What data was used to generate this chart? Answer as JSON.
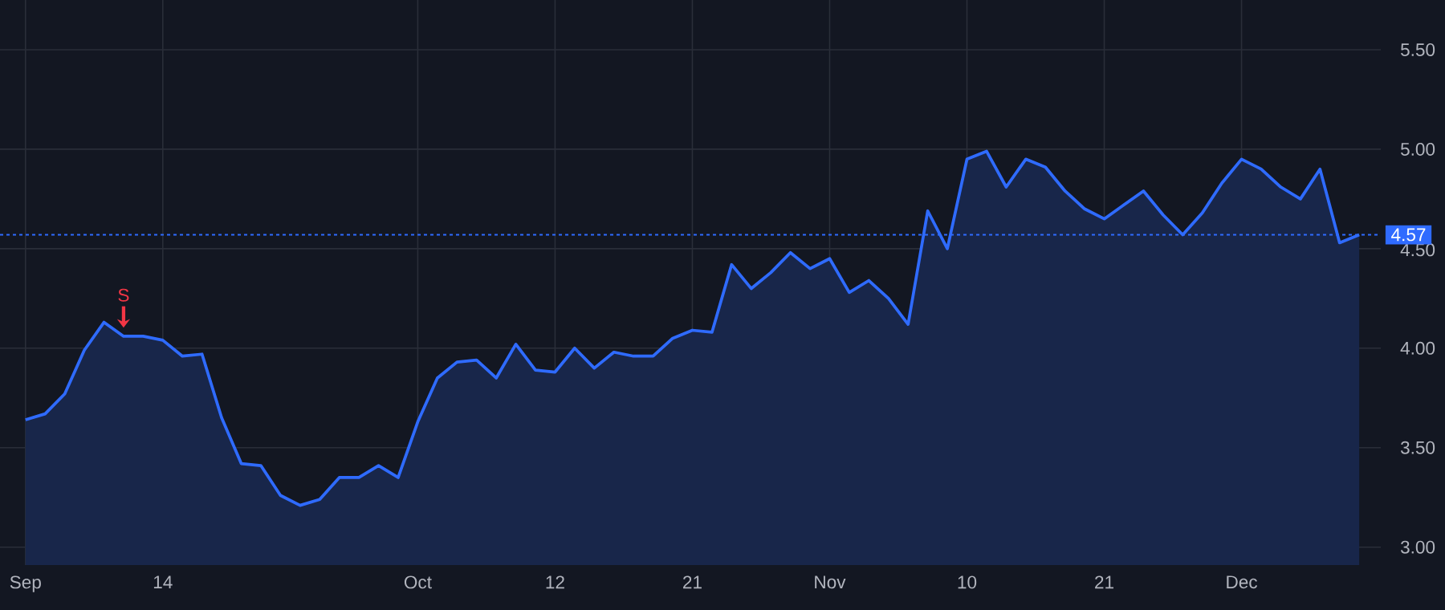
{
  "chart_data": {
    "type": "area",
    "color": "#2f6bff",
    "grid": true,
    "categories": [
      "Sep",
      null,
      null,
      null,
      null,
      null,
      null,
      "14",
      null,
      null,
      null,
      null,
      null,
      null,
      null,
      null,
      null,
      null,
      null,
      null,
      "Oct",
      null,
      null,
      null,
      null,
      null,
      null,
      "12",
      null,
      null,
      null,
      null,
      null,
      null,
      "21",
      null,
      null,
      null,
      null,
      null,
      null,
      "Nov",
      null,
      null,
      null,
      null,
      null,
      null,
      "10",
      null,
      null,
      null,
      null,
      null,
      null,
      "21",
      null,
      null,
      null,
      null,
      null,
      null,
      "Dec",
      null,
      null,
      null,
      null,
      null,
      null
    ],
    "values": [
      3.64,
      3.67,
      3.77,
      3.99,
      4.13,
      4.06,
      4.06,
      4.04,
      3.96,
      3.97,
      3.65,
      3.42,
      3.41,
      3.26,
      3.21,
      3.24,
      3.35,
      3.35,
      3.41,
      3.35,
      3.63,
      3.85,
      3.93,
      3.94,
      3.85,
      4.02,
      3.89,
      3.88,
      4.0,
      3.9,
      3.98,
      3.96,
      3.96,
      4.05,
      4.09,
      4.08,
      4.42,
      4.3,
      4.38,
      4.48,
      4.4,
      4.45,
      4.28,
      4.34,
      4.25,
      4.12,
      4.69,
      4.5,
      4.95,
      4.99,
      4.81,
      4.95,
      4.91,
      4.79,
      4.7,
      4.65,
      4.72,
      4.79,
      4.67,
      4.57,
      4.68,
      4.83,
      4.95,
      4.9,
      4.81,
      4.75,
      4.9,
      4.53,
      4.57
    ],
    "ylim": [
      2.91,
      5.75
    ],
    "yticks": [
      {
        "value": 3,
        "label": "3.00"
      },
      {
        "value": 3.5,
        "label": "3.50"
      },
      {
        "value": 4,
        "label": "4.00"
      },
      {
        "value": 4.5,
        "label": "4.50"
      },
      {
        "value": 5,
        "label": "5.00"
      },
      {
        "value": 5.5,
        "label": "5.50"
      }
    ],
    "ref_lines": [
      {
        "axis": "y",
        "value": 4.57,
        "label": "4.57",
        "color": "#2f6bff",
        "line_style": "dotted"
      }
    ],
    "annotations": [
      {
        "text": "S",
        "y": 4.06
      }
    ]
  }
}
